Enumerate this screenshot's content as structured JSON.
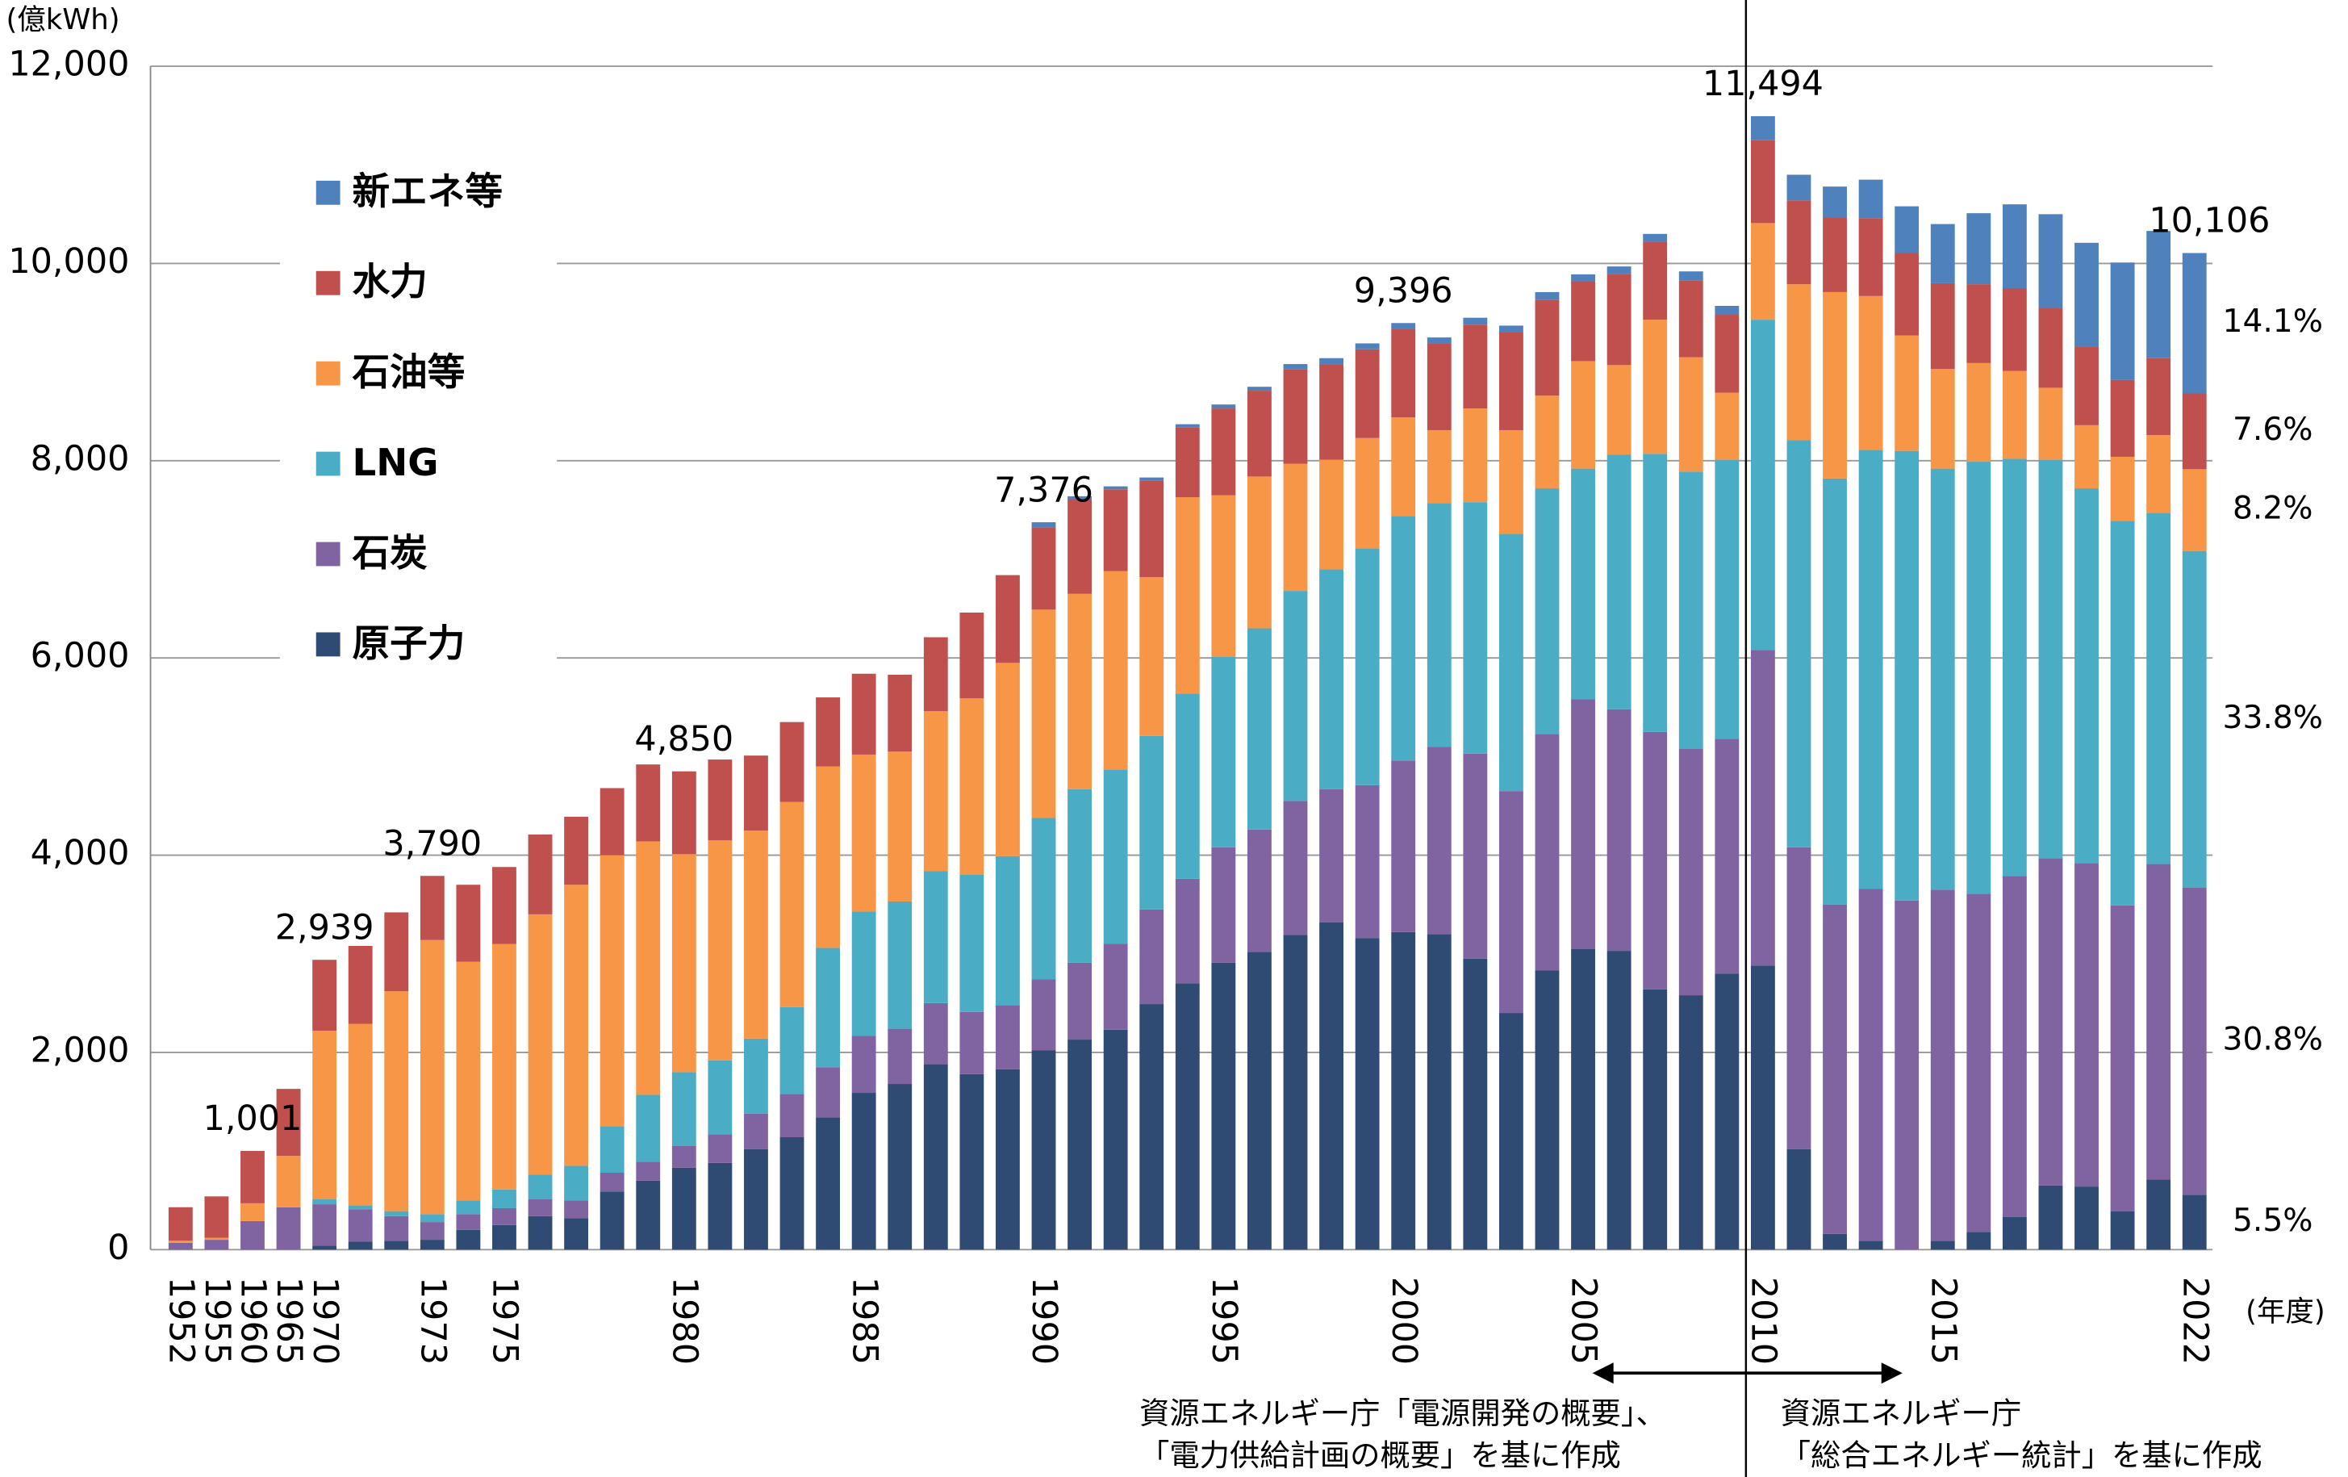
{
  "chart_data": {
    "type": "stacked-bar",
    "y_unit": "(億kWh)",
    "x_unit": "(年度)",
    "categories": [
      "1952",
      "1955",
      "1960",
      "1965",
      "1970",
      null,
      null,
      "1973",
      null,
      "1975",
      null,
      null,
      null,
      null,
      "1980",
      null,
      null,
      null,
      null,
      "1985",
      null,
      null,
      null,
      null,
      "1990",
      null,
      null,
      null,
      null,
      "1995",
      null,
      null,
      null,
      null,
      "2000",
      null,
      null,
      null,
      null,
      "2005",
      null,
      null,
      null,
      null,
      "2010",
      null,
      null,
      null,
      null,
      "2015",
      null,
      null,
      null,
      null,
      null,
      null,
      "2022"
    ],
    "series": [
      {
        "name": "原子力",
        "color": "#2f4b73",
        "values": [
          0,
          0,
          0,
          0,
          40,
          80,
          90,
          100,
          200,
          250,
          340,
          320,
          590,
          700,
          830,
          880,
          1020,
          1140,
          1340,
          1590,
          1680,
          1880,
          1780,
          1830,
          2020,
          2130,
          2230,
          2490,
          2700,
          2910,
          3020,
          3190,
          3320,
          3160,
          3220,
          3200,
          2950,
          2400,
          2830,
          3050,
          3030,
          2640,
          2580,
          2800,
          2880,
          1020,
          160,
          90,
          0,
          90,
          180,
          330,
          650,
          640,
          390,
          710,
          556
        ]
      },
      {
        "name": "石炭",
        "color": "#8064a2",
        "values": [
          70,
          100,
          290,
          430,
          420,
          330,
          250,
          180,
          160,
          170,
          170,
          180,
          190,
          190,
          220,
          290,
          360,
          440,
          510,
          580,
          560,
          620,
          630,
          650,
          720,
          780,
          870,
          960,
          1060,
          1170,
          1240,
          1360,
          1350,
          1550,
          1740,
          1900,
          2080,
          2250,
          2400,
          2530,
          2450,
          2610,
          2500,
          2380,
          3200,
          3060,
          3340,
          3570,
          3540,
          3560,
          3430,
          3460,
          3320,
          3280,
          3100,
          3200,
          3113
        ]
      },
      {
        "name": "LNG",
        "color": "#4bacc6",
        "values": [
          0,
          0,
          0,
          0,
          50,
          40,
          50,
          80,
          140,
          190,
          250,
          350,
          470,
          680,
          750,
          750,
          760,
          880,
          1210,
          1260,
          1290,
          1340,
          1390,
          1510,
          1640,
          1760,
          1770,
          1760,
          1880,
          1930,
          2040,
          2130,
          2230,
          2400,
          2480,
          2470,
          2550,
          2610,
          2490,
          2340,
          2580,
          2820,
          2810,
          2830,
          3350,
          4130,
          4320,
          4450,
          4560,
          4270,
          4380,
          4230,
          4040,
          3800,
          3900,
          3560,
          3416
        ]
      },
      {
        "name": "石油等",
        "color": "#f79646",
        "values": [
          20,
          20,
          180,
          520,
          1710,
          1840,
          2230,
          2780,
          2420,
          2490,
          2640,
          2850,
          2750,
          2570,
          2210,
          2230,
          2110,
          2080,
          1840,
          1590,
          1520,
          1620,
          1790,
          1960,
          2110,
          1980,
          2010,
          1610,
          1990,
          1640,
          1540,
          1290,
          1110,
          1120,
          1000,
          740,
          950,
          1050,
          940,
          1090,
          910,
          1360,
          1160,
          680,
          980,
          1580,
          1890,
          1560,
          1170,
          1010,
          1000,
          890,
          730,
          640,
          650,
          790,
          829
        ]
      },
      {
        "name": "水力",
        "color": "#c0504d",
        "values": [
          340,
          420,
          531,
          680,
          719,
          790,
          800,
          650,
          780,
          780,
          810,
          690,
          680,
          780,
          840,
          820,
          760,
          810,
          700,
          820,
          780,
          750,
          870,
          890,
          830,
          960,
          830,
          980,
          710,
          880,
          870,
          960,
          970,
          900,
          900,
          880,
          850,
          990,
          970,
          810,
          920,
          790,
          780,
          790,
          840,
          850,
          760,
          790,
          840,
          870,
          800,
          840,
          810,
          800,
          780,
          780,
          768
        ]
      },
      {
        "name": "新エネ等",
        "color": "#4f81bd",
        "values": [
          0,
          0,
          0,
          0,
          0,
          0,
          0,
          0,
          0,
          0,
          0,
          0,
          0,
          0,
          0,
          0,
          0,
          0,
          0,
          0,
          0,
          0,
          0,
          0,
          56,
          30,
          30,
          30,
          30,
          40,
          40,
          50,
          60,
          60,
          56,
          60,
          70,
          70,
          80,
          70,
          80,
          80,
          90,
          90,
          244,
          260,
          310,
          390,
          470,
          600,
          720,
          850,
          950,
          1050,
          1190,
          1290,
          1424
        ]
      }
    ],
    "totals": [
      null,
      null,
      1001,
      null,
      2939,
      null,
      null,
      3790,
      null,
      null,
      null,
      null,
      null,
      null,
      4850,
      null,
      null,
      null,
      null,
      null,
      null,
      null,
      null,
      null,
      7376,
      null,
      null,
      null,
      null,
      null,
      null,
      null,
      null,
      null,
      9396,
      null,
      null,
      null,
      null,
      null,
      null,
      null,
      null,
      null,
      11494,
      null,
      null,
      null,
      null,
      null,
      null,
      null,
      null,
      null,
      null,
      null,
      10106
    ],
    "total_labels": [
      null,
      null,
      "1,001",
      null,
      "2,939",
      null,
      null,
      "3,790",
      null,
      null,
      null,
      null,
      null,
      null,
      "4,850",
      null,
      null,
      null,
      null,
      null,
      null,
      null,
      null,
      null,
      "7,376",
      null,
      null,
      null,
      null,
      null,
      null,
      null,
      null,
      null,
      "9,396",
      null,
      null,
      null,
      null,
      null,
      null,
      null,
      null,
      null,
      "11,494",
      null,
      null,
      null,
      null,
      null,
      null,
      null,
      null,
      null,
      null,
      null,
      "10,106"
    ],
    "share_labels": [
      "5.5%",
      "30.8%",
      "33.8%",
      "8.2%",
      "7.6%",
      "14.1%"
    ],
    "ylim": [
      0,
      12000
    ],
    "yticks": [
      0,
      {
        "value": 2000,
        "label": "2,000"
      },
      {
        "value": 4000,
        "label": "4,000"
      },
      {
        "value": 6000,
        "label": "6,000"
      },
      {
        "value": 8000,
        "label": "8,000"
      },
      {
        "value": 10000,
        "label": "10,000"
      },
      {
        "value": 12000,
        "label": "12,000"
      }
    ],
    "grid": true,
    "legend": "upper left",
    "notes": [
      [
        "資源エネルギー庁「電源開発の概要」、",
        "「電力供給計画の概要」を基に作成"
      ],
      [
        "資源エネルギー庁",
        "「総合エネルギー統計」を基に作成"
      ]
    ]
  }
}
